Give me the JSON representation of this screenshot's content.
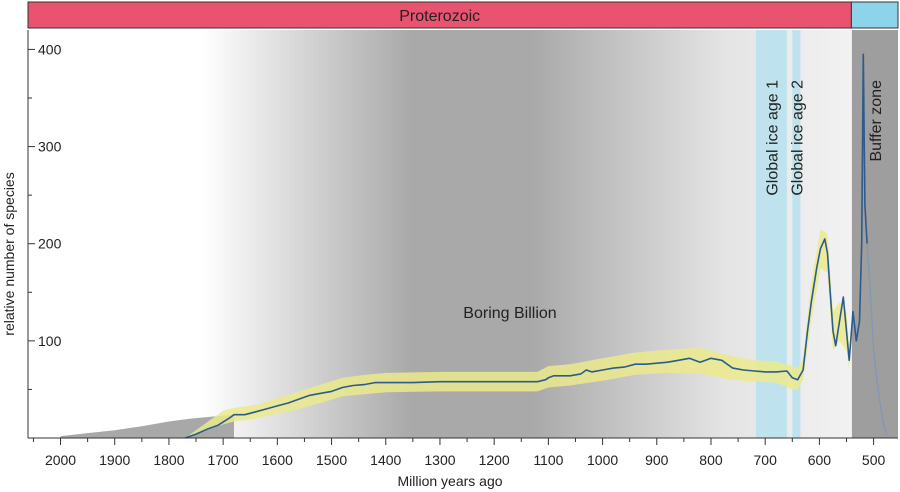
{
  "chart_data": {
    "type": "line",
    "title": "",
    "xlabel": "Million years ago",
    "ylabel": "relative number of species",
    "xlim": [
      2060,
      455
    ],
    "ylim": [
      0,
      420
    ],
    "x_ticks": [
      "2000",
      "1900",
      "1800",
      "1700",
      "1600",
      "1500",
      "1400",
      "1300",
      "1200",
      "1100",
      "1000",
      "900",
      "800",
      "700",
      "600",
      "500"
    ],
    "y_ticks": [
      "100",
      "200",
      "300",
      "400"
    ],
    "eras": [
      {
        "label": "Proterozoic",
        "from": 2060,
        "to": 541,
        "color": "#e8546f"
      },
      {
        "label": "",
        "from": 541,
        "to": 455,
        "color": "#8dd3ea"
      }
    ],
    "annotations": {
      "boring_billion": "Boring Billion",
      "ice_age_1": "Global ice age 1",
      "ice_age_2": "Global ice age 2",
      "buffer_zone": "Buffer zone"
    },
    "ice_ages": [
      {
        "from": 717,
        "to": 660
      },
      {
        "from": 650,
        "to": 635
      }
    ],
    "buffer_zone": {
      "from": 540,
      "to": 455
    },
    "colors": {
      "line": "#2d5b8a",
      "confidence_band": "#eaea8c",
      "older_record": "#a8a8a8",
      "ice_age": "#bfe3ee",
      "buffer": "#9e9e9e"
    },
    "series": [
      {
        "values": [
          [
            1770,
            0
          ],
          [
            1750,
            4
          ],
          [
            1730,
            9
          ],
          [
            1710,
            13
          ],
          [
            1690,
            20
          ],
          [
            1680,
            24
          ],
          [
            1660,
            24
          ],
          [
            1640,
            27
          ],
          [
            1620,
            30
          ],
          [
            1600,
            33
          ],
          [
            1580,
            36
          ],
          [
            1560,
            40
          ],
          [
            1540,
            44
          ],
          [
            1520,
            46
          ],
          [
            1500,
            48
          ],
          [
            1480,
            52
          ],
          [
            1460,
            54
          ],
          [
            1440,
            55
          ],
          [
            1420,
            57
          ],
          [
            1400,
            57
          ],
          [
            1350,
            57
          ],
          [
            1300,
            58
          ],
          [
            1250,
            58
          ],
          [
            1200,
            58
          ],
          [
            1150,
            58
          ],
          [
            1120,
            58
          ],
          [
            1105,
            60
          ],
          [
            1100,
            62
          ],
          [
            1090,
            64
          ],
          [
            1060,
            64
          ],
          [
            1040,
            66
          ],
          [
            1030,
            70
          ],
          [
            1020,
            68
          ],
          [
            1000,
            70
          ],
          [
            980,
            72
          ],
          [
            960,
            73
          ],
          [
            940,
            76
          ],
          [
            920,
            76
          ],
          [
            900,
            77
          ],
          [
            880,
            78
          ],
          [
            860,
            80
          ],
          [
            840,
            82
          ],
          [
            820,
            78
          ],
          [
            800,
            82
          ],
          [
            780,
            80
          ],
          [
            760,
            72
          ],
          [
            740,
            70
          ],
          [
            720,
            69
          ],
          [
            700,
            68
          ],
          [
            680,
            68
          ],
          [
            660,
            69
          ],
          [
            650,
            62
          ],
          [
            640,
            60
          ],
          [
            630,
            70
          ],
          [
            622,
            110
          ],
          [
            615,
            140
          ],
          [
            605,
            175
          ],
          [
            598,
            195
          ],
          [
            590,
            205
          ],
          [
            585,
            190
          ],
          [
            580,
            150
          ],
          [
            575,
            110
          ],
          [
            570,
            95
          ],
          [
            563,
            120
          ],
          [
            556,
            145
          ],
          [
            550,
            110
          ],
          [
            545,
            80
          ],
          [
            538,
            130
          ],
          [
            532,
            100
          ],
          [
            526,
            120
          ],
          [
            522,
            200
          ],
          [
            519,
            395
          ],
          [
            516,
            240
          ],
          [
            512,
            200
          ]
        ],
        "confidence_low": [
          [
            1770,
            0
          ],
          [
            1700,
            14
          ],
          [
            1680,
            17
          ],
          [
            1640,
            20
          ],
          [
            1600,
            25
          ],
          [
            1560,
            30
          ],
          [
            1520,
            36
          ],
          [
            1480,
            43
          ],
          [
            1440,
            45
          ],
          [
            1400,
            47
          ],
          [
            1300,
            48
          ],
          [
            1200,
            48
          ],
          [
            1120,
            48
          ],
          [
            1100,
            52
          ],
          [
            1060,
            54
          ],
          [
            1000,
            59
          ],
          [
            940,
            65
          ],
          [
            880,
            67
          ],
          [
            820,
            66
          ],
          [
            760,
            60
          ],
          [
            720,
            58
          ],
          [
            680,
            57
          ],
          [
            650,
            50
          ],
          [
            640,
            50
          ],
          [
            630,
            60
          ],
          [
            615,
            120
          ],
          [
            598,
            175
          ],
          [
            585,
            170
          ],
          [
            575,
            90
          ],
          [
            563,
            100
          ],
          [
            550,
            90
          ],
          [
            545,
            70
          ]
        ],
        "confidence_high": [
          [
            1770,
            0
          ],
          [
            1700,
            28
          ],
          [
            1680,
            31
          ],
          [
            1640,
            34
          ],
          [
            1600,
            41
          ],
          [
            1560,
            48
          ],
          [
            1520,
            55
          ],
          [
            1480,
            62
          ],
          [
            1440,
            65
          ],
          [
            1400,
            67
          ],
          [
            1300,
            68
          ],
          [
            1200,
            68
          ],
          [
            1120,
            68
          ],
          [
            1100,
            74
          ],
          [
            1060,
            76
          ],
          [
            1000,
            82
          ],
          [
            940,
            88
          ],
          [
            880,
            91
          ],
          [
            820,
            93
          ],
          [
            760,
            84
          ],
          [
            720,
            80
          ],
          [
            680,
            79
          ],
          [
            650,
            74
          ],
          [
            640,
            72
          ],
          [
            630,
            82
          ],
          [
            615,
            160
          ],
          [
            598,
            215
          ],
          [
            585,
            210
          ],
          [
            575,
            130
          ],
          [
            563,
            140
          ],
          [
            550,
            130
          ],
          [
            545,
            95
          ]
        ]
      },
      {
        "values": [
          [
            512,
            200
          ],
          [
            506,
            150
          ],
          [
            500,
            90
          ],
          [
            494,
            60
          ],
          [
            488,
            35
          ],
          [
            482,
            15
          ],
          [
            476,
            3
          ]
        ]
      }
    ],
    "older_record": [
      [
        2000,
        2
      ],
      [
        1950,
        5
      ],
      [
        1900,
        8
      ],
      [
        1850,
        12
      ],
      [
        1800,
        17
      ],
      [
        1760,
        20
      ],
      [
        1720,
        22
      ],
      [
        1680,
        24
      ]
    ],
    "grid": false,
    "legend": "none"
  }
}
